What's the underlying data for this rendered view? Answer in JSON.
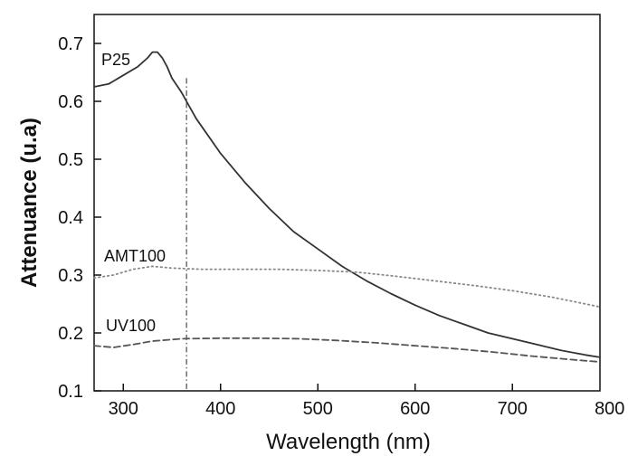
{
  "chart_data": {
    "type": "line",
    "xlabel": "Wavelength (nm)",
    "ylabel": "Attenuance (u.a)",
    "xlim": [
      270,
      790
    ],
    "ylim": [
      0.1,
      0.75
    ],
    "x_ticks": [
      300,
      400,
      500,
      600,
      700,
      800
    ],
    "x_tick_labels": [
      "300",
      "400",
      "500",
      "600",
      "700",
      "800"
    ],
    "y_ticks": [
      0.1,
      0.2,
      0.3,
      0.4,
      0.5,
      0.6,
      0.7
    ],
    "y_tick_labels": [
      "0.1",
      "0.2",
      "0.3",
      "0.4",
      "0.5",
      "0.6",
      "0.7"
    ],
    "grid": false,
    "reference_line": {
      "x": 365,
      "style": "dash-dot"
    },
    "series": [
      {
        "name": "P25",
        "style": "solid",
        "color": "#333333",
        "x": [
          270,
          285,
          300,
          315,
          325,
          330,
          335,
          340,
          345,
          350,
          360,
          365,
          375,
          400,
          425,
          450,
          475,
          500,
          525,
          550,
          575,
          600,
          625,
          650,
          675,
          700,
          725,
          750,
          775,
          790
        ],
        "y": [
          0.625,
          0.63,
          0.645,
          0.66,
          0.675,
          0.685,
          0.685,
          0.675,
          0.66,
          0.64,
          0.615,
          0.6,
          0.57,
          0.51,
          0.46,
          0.415,
          0.375,
          0.345,
          0.315,
          0.29,
          0.268,
          0.248,
          0.23,
          0.215,
          0.2,
          0.19,
          0.18,
          0.17,
          0.162,
          0.158
        ]
      },
      {
        "name": "AMT100",
        "style": "dotted",
        "color": "#888888",
        "x": [
          270,
          290,
          310,
          330,
          350,
          380,
          420,
          460,
          500,
          540,
          580,
          620,
          660,
          700,
          740,
          790
        ],
        "y": [
          0.295,
          0.3,
          0.31,
          0.315,
          0.312,
          0.31,
          0.31,
          0.31,
          0.308,
          0.305,
          0.298,
          0.29,
          0.282,
          0.273,
          0.262,
          0.245
        ]
      },
      {
        "name": "UV100",
        "style": "dashed",
        "color": "#555555",
        "x": [
          270,
          290,
          310,
          330,
          360,
          400,
          440,
          480,
          520,
          560,
          600,
          640,
          680,
          720,
          760,
          790
        ],
        "y": [
          0.178,
          0.175,
          0.18,
          0.186,
          0.19,
          0.191,
          0.191,
          0.19,
          0.187,
          0.183,
          0.178,
          0.173,
          0.167,
          0.16,
          0.154,
          0.15
        ]
      }
    ]
  }
}
